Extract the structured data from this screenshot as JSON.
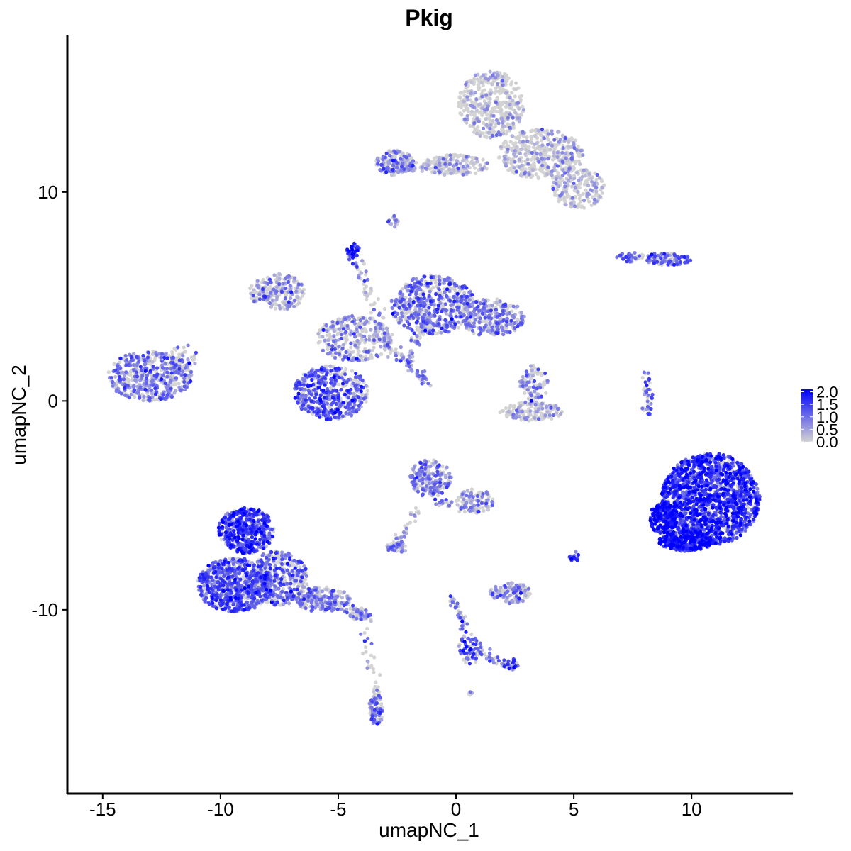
{
  "chart_data": {
    "type": "scatter",
    "title": "Pkig",
    "xlabel": "umapNC_1",
    "ylabel": "umapNC_2",
    "xlim": [
      -16.5,
      14.3
    ],
    "ylim": [
      -18.8,
      17.5
    ],
    "x_ticks": [
      -15,
      -10,
      -5,
      0,
      5,
      10
    ],
    "x_tick_labels": [
      "-15",
      "-10",
      "-5",
      "0",
      "5",
      "10"
    ],
    "y_ticks": [
      -10,
      0,
      10
    ],
    "y_tick_labels": [
      "-10",
      "0",
      "10"
    ],
    "grid": false,
    "legend": {
      "placement": "right",
      "type": "colorbar",
      "min": 0.0,
      "max": 2.1,
      "breaks": [
        0.0,
        0.5,
        1.0,
        1.5,
        2.0
      ],
      "labels": [
        "0.0",
        "0.5",
        "1.0",
        "1.5",
        "2.0"
      ],
      "low_color": "#d3d3d3",
      "high_color": "#0000ff"
    },
    "clusters": [
      {
        "cx": 1.5,
        "cy": 14.2,
        "rx": 1.4,
        "ry": 1.6,
        "n": 420,
        "mean_expr": 0.15
      },
      {
        "cx": 3.6,
        "cy": 11.8,
        "rx": 1.8,
        "ry": 1.2,
        "n": 420,
        "mean_expr": 0.2
      },
      {
        "cx": 5.2,
        "cy": 10.2,
        "rx": 1.1,
        "ry": 1.0,
        "n": 200,
        "mean_expr": 0.25
      },
      {
        "cx": 0.0,
        "cy": 11.3,
        "rx": 1.4,
        "ry": 0.5,
        "n": 180,
        "mean_expr": 0.25
      },
      {
        "cx": -2.6,
        "cy": 11.4,
        "rx": 0.8,
        "ry": 0.6,
        "n": 150,
        "mean_expr": 0.7
      },
      {
        "cx": -2.7,
        "cy": 8.6,
        "rx": 0.25,
        "ry": 0.3,
        "n": 18,
        "mean_expr": 0.7
      },
      {
        "cx": 9.0,
        "cy": 6.8,
        "rx": 1.0,
        "ry": 0.3,
        "n": 100,
        "mean_expr": 1.0
      },
      {
        "cx": 7.4,
        "cy": 6.9,
        "rx": 0.6,
        "ry": 0.25,
        "n": 45,
        "mean_expr": 1.0
      },
      {
        "cx": -1.0,
        "cy": 4.6,
        "rx": 1.8,
        "ry": 1.4,
        "n": 500,
        "mean_expr": 0.9
      },
      {
        "cx": 1.5,
        "cy": 4.0,
        "rx": 1.4,
        "ry": 0.9,
        "n": 300,
        "mean_expr": 0.7
      },
      {
        "cx": -7.6,
        "cy": 5.2,
        "rx": 1.2,
        "ry": 0.9,
        "n": 220,
        "mean_expr": 0.5
      },
      {
        "cx": -4.3,
        "cy": 3.0,
        "rx": 1.6,
        "ry": 1.1,
        "n": 300,
        "mean_expr": 0.5
      },
      {
        "cx": -5.3,
        "cy": 0.4,
        "rx": 1.6,
        "ry": 1.3,
        "n": 520,
        "mean_expr": 1.05
      },
      {
        "cx": -4.4,
        "cy": 7.2,
        "rx": 0.3,
        "ry": 0.35,
        "n": 30,
        "mean_expr": 1.6
      },
      {
        "cx": -13.0,
        "cy": 1.2,
        "rx": 1.8,
        "ry": 1.2,
        "n": 500,
        "mean_expr": 0.75
      },
      {
        "cx": -11.6,
        "cy": 2.1,
        "rx": 0.6,
        "ry": 0.6,
        "n": 40,
        "mean_expr": 0.7
      },
      {
        "cx": 3.3,
        "cy": 0.8,
        "rx": 0.6,
        "ry": 0.9,
        "n": 90,
        "mean_expr": 0.6
      },
      {
        "cx": 3.2,
        "cy": -0.5,
        "rx": 1.4,
        "ry": 0.45,
        "n": 160,
        "mean_expr": 0.25
      },
      {
        "cx": 8.1,
        "cy": 0.3,
        "rx": 0.25,
        "ry": 1.2,
        "n": 40,
        "mean_expr": 1.0
      },
      {
        "cx": 10.8,
        "cy": -4.7,
        "rx": 2.1,
        "ry": 2.2,
        "n": 1500,
        "mean_expr": 1.5
      },
      {
        "cx": 8.8,
        "cy": -5.6,
        "rx": 0.6,
        "ry": 0.8,
        "n": 180,
        "mean_expr": 1.8
      },
      {
        "cx": 9.8,
        "cy": -6.7,
        "rx": 1.2,
        "ry": 0.5,
        "n": 300,
        "mean_expr": 1.6
      },
      {
        "cx": -1.1,
        "cy": -3.7,
        "rx": 0.9,
        "ry": 0.9,
        "n": 200,
        "mean_expr": 0.75
      },
      {
        "cx": 0.8,
        "cy": -4.8,
        "rx": 0.8,
        "ry": 0.6,
        "n": 100,
        "mean_expr": 0.6
      },
      {
        "cx": -2.5,
        "cy": -7.0,
        "rx": 0.45,
        "ry": 0.3,
        "n": 50,
        "mean_expr": 0.6
      },
      {
        "cx": 2.3,
        "cy": -9.2,
        "rx": 0.9,
        "ry": 0.5,
        "n": 130,
        "mean_expr": 0.55
      },
      {
        "cx": 5.0,
        "cy": -7.5,
        "rx": 0.25,
        "ry": 0.3,
        "n": 20,
        "mean_expr": 1.2
      },
      {
        "cx": -8.9,
        "cy": -6.2,
        "rx": 1.2,
        "ry": 1.1,
        "n": 500,
        "mean_expr": 1.35
      },
      {
        "cx": -9.4,
        "cy": -8.8,
        "rx": 1.6,
        "ry": 1.3,
        "n": 700,
        "mean_expr": 1.15
      },
      {
        "cx": -7.6,
        "cy": -8.5,
        "rx": 1.3,
        "ry": 1.3,
        "n": 400,
        "mean_expr": 0.9
      },
      {
        "cx": -5.7,
        "cy": -9.5,
        "rx": 1.2,
        "ry": 0.6,
        "n": 200,
        "mean_expr": 0.7
      },
      {
        "cx": -4.1,
        "cy": -10.2,
        "rx": 0.4,
        "ry": 0.3,
        "n": 40,
        "mean_expr": 0.8
      },
      {
        "cx": -3.4,
        "cy": -14.8,
        "rx": 0.3,
        "ry": 0.8,
        "n": 70,
        "mean_expr": 0.9
      },
      {
        "cx": 0.6,
        "cy": -11.9,
        "rx": 0.5,
        "ry": 0.7,
        "n": 60,
        "mean_expr": 1.2
      },
      {
        "cx": 2.3,
        "cy": -12.6,
        "rx": 0.4,
        "ry": 0.3,
        "n": 30,
        "mean_expr": 1.0
      },
      {
        "cx": 0.6,
        "cy": -14.0,
        "rx": 0.1,
        "ry": 0.1,
        "n": 4,
        "mean_expr": 1.0
      }
    ],
    "bridges": [
      {
        "x1": -2.7,
        "y1": 11.3,
        "x2": 0.5,
        "y2": 11.0,
        "n": 60,
        "mean_expr": 0.3
      },
      {
        "x1": -4.4,
        "y1": 7.0,
        "x2": -2.8,
        "y2": 2.8,
        "n": 60,
        "mean_expr": 0.6
      },
      {
        "x1": -3.2,
        "y1": 3.0,
        "x2": -1.2,
        "y2": 0.8,
        "n": 60,
        "mean_expr": 0.6
      },
      {
        "x1": -2.0,
        "y1": 1.8,
        "x2": -1.2,
        "y2": 4.2,
        "n": 60,
        "mean_expr": 0.5
      },
      {
        "x1": -1.6,
        "y1": -5.0,
        "x2": -2.6,
        "y2": -7.0,
        "n": 30,
        "mean_expr": 0.6
      },
      {
        "x1": -0.8,
        "y1": -4.8,
        "x2": 0.6,
        "y2": -5.2,
        "n": 30,
        "mean_expr": 0.6
      },
      {
        "x1": -6.5,
        "y1": -9.2,
        "x2": -3.6,
        "y2": -10.4,
        "n": 60,
        "mean_expr": 0.6
      },
      {
        "x1": -3.9,
        "y1": -11.0,
        "x2": -3.4,
        "y2": -14.0,
        "n": 30,
        "mean_expr": 0.6
      },
      {
        "x1": -0.1,
        "y1": -9.4,
        "x2": 0.6,
        "y2": -11.6,
        "n": 40,
        "mean_expr": 1.0
      },
      {
        "x1": 0.8,
        "y1": -12.0,
        "x2": 2.3,
        "y2": -12.6,
        "n": 30,
        "mean_expr": 0.8
      }
    ]
  }
}
